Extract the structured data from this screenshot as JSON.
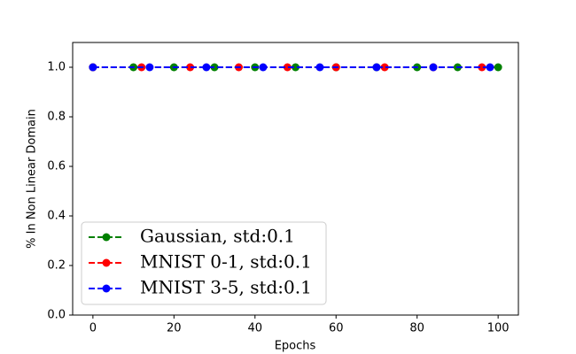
{
  "chart_data": {
    "type": "line",
    "xlabel": "Epochs",
    "ylabel": "% In Non Linear Domain",
    "xlim": [
      -5,
      105
    ],
    "ylim": [
      0,
      1.1
    ],
    "xticks": [
      0,
      20,
      40,
      60,
      80,
      100
    ],
    "yticks": [
      {
        "value": 0,
        "label": "0.0"
      },
      {
        "value": 0.2,
        "label": "0.2"
      },
      {
        "value": 0.4,
        "label": "0.4"
      },
      {
        "value": 0.6,
        "label": "0.6"
      },
      {
        "value": 0.8,
        "label": "0.8"
      },
      {
        "value": 1,
        "label": "1.0"
      }
    ],
    "legend": "lower left",
    "series": [
      {
        "name": "Gaussian, std:0.1",
        "color": "green",
        "x": [
          0,
          10,
          20,
          30,
          40,
          50,
          60,
          70,
          80,
          90,
          100
        ],
        "values": [
          1,
          1,
          1,
          1,
          1,
          1,
          1,
          1,
          1,
          1,
          1
        ]
      },
      {
        "name": "MNIST 0-1, std:0.1",
        "color": "red",
        "x": [
          0,
          12,
          24,
          36,
          48,
          60,
          72,
          84,
          96
        ],
        "values": [
          1,
          1,
          1,
          1,
          1,
          1,
          1,
          1,
          1
        ]
      },
      {
        "name": "MNIST 3-5, std:0.1",
        "color": "blue",
        "x": [
          0,
          14,
          28,
          42,
          56,
          70,
          84,
          98
        ],
        "values": [
          1,
          1,
          1,
          1,
          1,
          1,
          1,
          1
        ]
      }
    ]
  }
}
